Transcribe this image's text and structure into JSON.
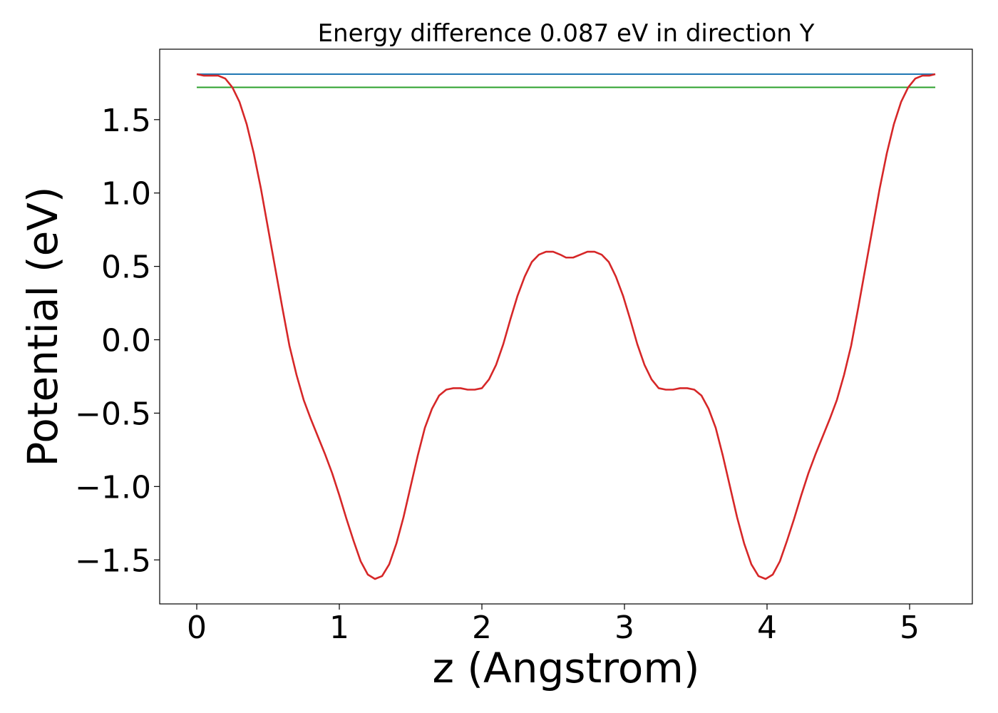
{
  "chart_data": {
    "type": "line",
    "title": "Energy difference 0.087 eV in direction Y",
    "xlabel": "z (Angstrom)",
    "ylabel": "Potential (eV)",
    "xlim": [
      -0.26,
      5.44
    ],
    "ylim": [
      -1.8,
      1.98
    ],
    "xticks": [
      0,
      1,
      2,
      3,
      4,
      5
    ],
    "xtick_labels": [
      "0",
      "1",
      "2",
      "3",
      "4",
      "5"
    ],
    "yticks": [
      -1.5,
      -1.0,
      -0.5,
      0.0,
      0.5,
      1.0,
      1.5
    ],
    "ytick_labels": [
      "−1.5",
      "−1.0",
      "−0.5",
      "0.0",
      "0.5",
      "1.0",
      "1.5"
    ],
    "grid": false,
    "series": [
      {
        "kind": "hline",
        "color": "#1f77b4",
        "x": [
          0,
          5.18
        ],
        "y": [
          1.81,
          1.81
        ]
      },
      {
        "kind": "hline",
        "color": "#2ca02c",
        "x": [
          0,
          5.18
        ],
        "y": [
          1.72,
          1.72
        ]
      },
      {
        "kind": "curve",
        "color": "#d62728",
        "x": [
          0.0,
          0.05,
          0.1,
          0.15,
          0.2,
          0.25,
          0.3,
          0.35,
          0.4,
          0.45,
          0.5,
          0.55,
          0.6,
          0.65,
          0.7,
          0.75,
          0.8,
          0.85,
          0.9,
          0.95,
          1.0,
          1.05,
          1.1,
          1.15,
          1.2,
          1.25,
          1.3,
          1.35,
          1.4,
          1.45,
          1.5,
          1.55,
          1.6,
          1.65,
          1.7,
          1.75,
          1.8,
          1.85,
          1.9,
          1.95,
          2.0,
          2.05,
          2.1,
          2.15,
          2.2,
          2.25,
          2.3,
          2.35,
          2.4,
          2.45,
          2.5,
          2.55,
          2.59,
          2.64,
          2.69,
          2.74,
          2.79,
          2.84,
          2.89,
          2.94,
          2.99,
          3.04,
          3.09,
          3.14,
          3.19,
          3.24,
          3.29,
          3.34,
          3.39,
          3.44,
          3.49,
          3.54,
          3.59,
          3.64,
          3.69,
          3.74,
          3.79,
          3.84,
          3.89,
          3.94,
          3.99,
          4.04,
          4.09,
          4.14,
          4.19,
          4.24,
          4.29,
          4.34,
          4.39,
          4.44,
          4.49,
          4.54,
          4.59,
          4.64,
          4.69,
          4.74,
          4.79,
          4.84,
          4.89,
          4.94,
          4.99,
          5.04,
          5.09,
          5.14,
          5.18
        ],
        "y": [
          1.81,
          1.8,
          1.8,
          1.8,
          1.78,
          1.72,
          1.62,
          1.47,
          1.27,
          1.03,
          0.76,
          0.49,
          0.22,
          -0.04,
          -0.24,
          -0.41,
          -0.54,
          -0.66,
          -0.78,
          -0.91,
          -1.06,
          -1.22,
          -1.37,
          -1.51,
          -1.6,
          -1.63,
          -1.61,
          -1.53,
          -1.39,
          -1.21,
          -1.0,
          -0.79,
          -0.6,
          -0.47,
          -0.38,
          -0.34,
          -0.33,
          -0.33,
          -0.34,
          -0.34,
          -0.33,
          -0.27,
          -0.17,
          -0.03,
          0.14,
          0.3,
          0.43,
          0.53,
          0.58,
          0.6,
          0.6,
          0.58,
          0.56,
          0.56,
          0.58,
          0.6,
          0.6,
          0.58,
          0.53,
          0.43,
          0.3,
          0.14,
          -0.03,
          -0.17,
          -0.27,
          -0.33,
          -0.34,
          -0.34,
          -0.33,
          -0.33,
          -0.34,
          -0.38,
          -0.47,
          -0.6,
          -0.79,
          -1.0,
          -1.21,
          -1.39,
          -1.53,
          -1.61,
          -1.63,
          -1.6,
          -1.51,
          -1.37,
          -1.22,
          -1.06,
          -0.91,
          -0.78,
          -0.66,
          -0.54,
          -0.41,
          -0.24,
          -0.04,
          0.22,
          0.49,
          0.76,
          1.03,
          1.27,
          1.47,
          1.62,
          1.72,
          1.78,
          1.8,
          1.8,
          1.81
        ]
      }
    ]
  }
}
